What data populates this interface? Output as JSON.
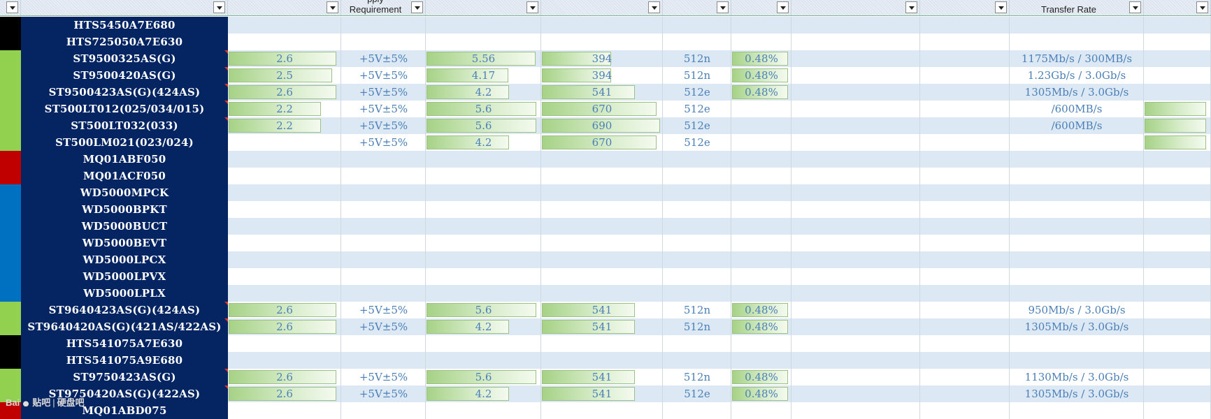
{
  "header": {
    "columns": [
      {
        "name": "selector",
        "peek": "",
        "label": ""
      },
      {
        "name": "model",
        "peek": "",
        "label": ""
      },
      {
        "name": "current",
        "peek": "",
        "label": ""
      },
      {
        "name": "power-supply",
        "peek": "pply",
        "label": "Requirement"
      },
      {
        "name": "power-a",
        "peek": "",
        "label": ""
      },
      {
        "name": "power-b",
        "peek": "",
        "label": ""
      },
      {
        "name": "sector",
        "peek": "",
        "label": ""
      },
      {
        "name": "ratio",
        "peek": "",
        "label": ""
      },
      {
        "name": "col-i",
        "peek": "",
        "label": ""
      },
      {
        "name": "col-j",
        "peek": "",
        "label": ""
      },
      {
        "name": "transfer-rate",
        "peek": "",
        "label": "Transfer Rate"
      },
      {
        "name": "col-l",
        "peek": "",
        "label": ""
      }
    ]
  },
  "colors": {
    "black": "#000000",
    "green": "#92d050",
    "red": "#c00000",
    "blue": "#0070c0",
    "name_bg": "#042462",
    "alt_row": "#dce8f4",
    "value_text": "#4a7fb7"
  },
  "rows": [
    {
      "strip": "black",
      "model": "HTS5450A7E680"
    },
    {
      "strip": "black",
      "model": "HTS725050A7E630"
    },
    {
      "strip": "green",
      "model": "ST9500325AS(G)",
      "flag": true,
      "current": "2.6",
      "current_bar": 0.97,
      "voltage": "+5V±5%",
      "pa": "5.56",
      "pa_bar": 0.96,
      "pb": "394",
      "pb_bar": 0.58,
      "sector": "512n",
      "ratio": "0.48%",
      "ratio_bar": 0.96,
      "rate": "1175Mb/s  / 300MB/s"
    },
    {
      "strip": "green",
      "model": "ST9500420AS(G)",
      "flag": true,
      "current": "2.5",
      "current_bar": 0.93,
      "voltage": "+5V±5%",
      "pa": "4.17",
      "pa_bar": 0.72,
      "pb": "394",
      "pb_bar": 0.58,
      "sector": "512n",
      "ratio": "0.48%",
      "ratio_bar": 0.96,
      "rate": "1.23Gb/s / 3.0Gb/s"
    },
    {
      "strip": "green",
      "model": "ST9500423AS(G)(424AS)",
      "flag": true,
      "current": "2.6",
      "current_bar": 0.97,
      "voltage": "+5V±5%",
      "pa": "4.2",
      "pa_bar": 0.73,
      "pb": "541",
      "pb_bar": 0.78,
      "sector": "512e",
      "ratio": "0.48%",
      "ratio_bar": 0.96,
      "rate": "1305Mb/s / 3.0Gb/s"
    },
    {
      "strip": "green",
      "model": "ST500LT012(025/034/015)",
      "flag": true,
      "current": "2.2",
      "current_bar": 0.83,
      "voltage": "+5V±5%",
      "pa": "5.6",
      "pa_bar": 0.97,
      "pb": "670",
      "pb_bar": 0.96,
      "sector": "512e",
      "ratio": "",
      "ratio_bar": 0,
      "rate": "/600MB/s",
      "extra_bar": true
    },
    {
      "strip": "green",
      "model": "ST500LT032(033)",
      "flag": true,
      "current": "2.2",
      "current_bar": 0.83,
      "voltage": "+5V±5%",
      "pa": "5.6",
      "pa_bar": 0.97,
      "pb": "690",
      "pb_bar": 0.99,
      "sector": "512e",
      "ratio": "",
      "ratio_bar": 0,
      "rate": "/600MB/s",
      "extra_bar": true
    },
    {
      "strip": "green",
      "model": "ST500LM021(023/024)",
      "flag": false,
      "current": "",
      "current_bar": 0,
      "voltage": "+5V±5%",
      "pa": "4.2",
      "pa_bar": 0.73,
      "pb": "670",
      "pb_bar": 0.96,
      "sector": "512e",
      "ratio": "",
      "ratio_bar": 0,
      "rate": "",
      "extra_bar": true
    },
    {
      "strip": "red",
      "model": "MQ01ABF050"
    },
    {
      "strip": "red",
      "model": "MQ01ACF050"
    },
    {
      "strip": "blue",
      "model": "WD5000MPCK"
    },
    {
      "strip": "blue",
      "model": "WD5000BPKT"
    },
    {
      "strip": "blue",
      "model": "WD5000BUCT"
    },
    {
      "strip": "blue",
      "model": "WD5000BEVT"
    },
    {
      "strip": "blue",
      "model": "WD5000LPCX"
    },
    {
      "strip": "blue",
      "model": "WD5000LPVX"
    },
    {
      "strip": "blue",
      "model": "WD5000LPLX"
    },
    {
      "strip": "green",
      "model": "ST9640423AS(G)(424AS)",
      "flag": true,
      "current": "2.6",
      "current_bar": 0.97,
      "voltage": "+5V±5%",
      "pa": "5.6",
      "pa_bar": 0.97,
      "pb": "541",
      "pb_bar": 0.78,
      "sector": "512n",
      "ratio": "0.48%",
      "ratio_bar": 0.96,
      "rate": "950Mb/s / 3.0Gb/s"
    },
    {
      "strip": "green",
      "model": "ST9640420AS(G)(421AS/422AS)",
      "flag": true,
      "current": "2.6",
      "current_bar": 0.97,
      "voltage": "+5V±5%",
      "pa": "4.2",
      "pa_bar": 0.73,
      "pb": "541",
      "pb_bar": 0.78,
      "sector": "512n",
      "ratio": "0.48%",
      "ratio_bar": 0.96,
      "rate": "1305Mb/s / 3.0Gb/s"
    },
    {
      "strip": "black",
      "model": "HTS541075A7E630"
    },
    {
      "strip": "black",
      "model": "HTS541075A9E680"
    },
    {
      "strip": "green",
      "model": "ST9750423AS(G)",
      "flag": true,
      "current": "2.6",
      "current_bar": 0.97,
      "voltage": "+5V±5%",
      "pa": "5.6",
      "pa_bar": 0.97,
      "pb": "541",
      "pb_bar": 0.78,
      "sector": "512n",
      "ratio": "0.48%",
      "ratio_bar": 0.96,
      "rate": "1130Mb/s / 3.0Gb/s"
    },
    {
      "strip": "green",
      "model": "ST9750420AS(G)(422AS)",
      "flag": true,
      "current": "2.6",
      "current_bar": 0.97,
      "voltage": "+5V±5%",
      "pa": "4.2",
      "pa_bar": 0.73,
      "pb": "541",
      "pb_bar": 0.78,
      "sector": "512e",
      "ratio": "0.48%",
      "ratio_bar": 0.96,
      "rate": "1305Mb/s / 3.0Gb/s"
    },
    {
      "strip": "red",
      "model": "MQ01ABD075"
    }
  ],
  "watermark": {
    "brand": "Bai",
    "product": "贴吧",
    "forum": "硬盘吧"
  }
}
